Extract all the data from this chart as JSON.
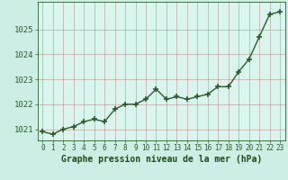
{
  "x": [
    0,
    1,
    2,
    3,
    4,
    5,
    6,
    7,
    8,
    9,
    10,
    11,
    12,
    13,
    14,
    15,
    16,
    17,
    18,
    19,
    20,
    21,
    22,
    23
  ],
  "y": [
    1020.9,
    1020.8,
    1021.0,
    1021.1,
    1021.3,
    1021.4,
    1021.3,
    1021.8,
    1022.0,
    1022.0,
    1022.2,
    1022.6,
    1022.2,
    1022.3,
    1022.2,
    1022.3,
    1022.4,
    1022.7,
    1022.7,
    1023.3,
    1023.8,
    1024.7,
    1025.6,
    1025.7
  ],
  "line_color": "#2a5c2a",
  "marker": "+",
  "marker_size": 4,
  "line_width": 1.0,
  "bg_color": "#cceee4",
  "plot_bg_color": "#d8f5ee",
  "grid_color": "#d0909090",
  "xlabel": "Graphe pression niveau de la mer (hPa)",
  "xlabel_color": "#1a4a1a",
  "xlabel_fontsize": 7,
  "ytick_labels": [
    1021,
    1022,
    1023,
    1024,
    1025
  ],
  "ylim": [
    1020.55,
    1026.1
  ],
  "xlim": [
    -0.5,
    23.5
  ],
  "xtick_fontsize": 5.5,
  "ytick_fontsize": 6.5
}
